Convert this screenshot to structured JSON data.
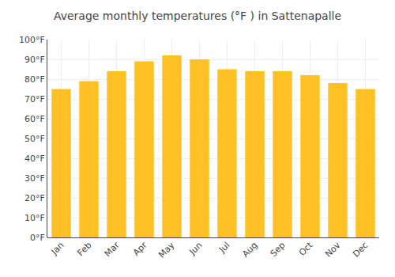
{
  "chart_data": {
    "type": "bar",
    "title": "Average monthly temperatures (°F ) in Sattenapalle",
    "categories": [
      "Jan",
      "Feb",
      "Mar",
      "Apr",
      "May",
      "Jun",
      "Jul",
      "Aug",
      "Sep",
      "Oct",
      "Nov",
      "Dec"
    ],
    "values": [
      75,
      79,
      84,
      89,
      92,
      90,
      85,
      84,
      84,
      82,
      78,
      75
    ],
    "color": "#FFC125",
    "ylim": [
      0,
      100
    ],
    "yticks": [
      {
        "value": 0,
        "label": "0°F"
      },
      {
        "value": 10,
        "label": "10°F"
      },
      {
        "value": 20,
        "label": "20°F"
      },
      {
        "value": 30,
        "label": "30°F"
      },
      {
        "value": 40,
        "label": "40°F"
      },
      {
        "value": 50,
        "label": "50°F"
      },
      {
        "value": 60,
        "label": "60°F"
      },
      {
        "value": 70,
        "label": "70°F"
      },
      {
        "value": 80,
        "label": "80°F"
      },
      {
        "value": 90,
        "label": "90°F"
      },
      {
        "value": 100,
        "label": "100°F"
      }
    ],
    "grid": true
  }
}
